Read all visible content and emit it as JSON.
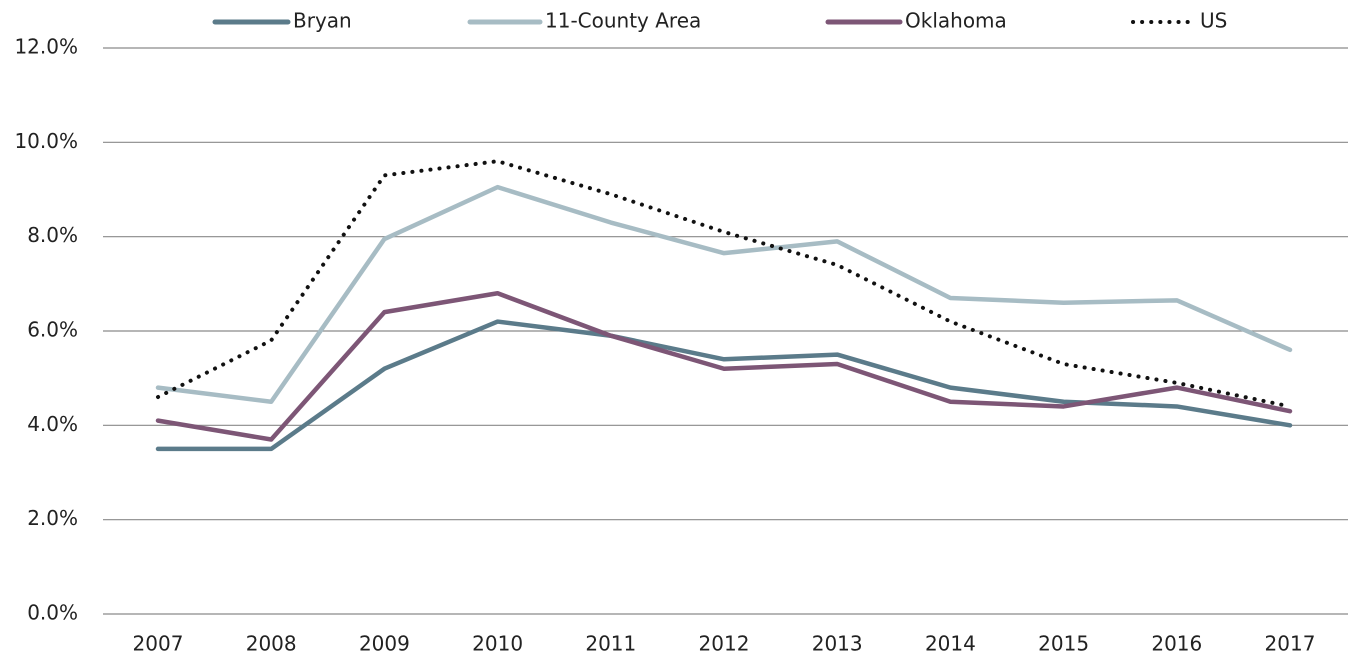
{
  "chart_data": {
    "type": "line",
    "x": [
      "2007",
      "2008",
      "2009",
      "2010",
      "2011",
      "2012",
      "2013",
      "2014",
      "2015",
      "2016",
      "2017"
    ],
    "series": [
      {
        "name": "Bryan",
        "color": "#5b7b8a",
        "values": [
          3.5,
          3.5,
          5.2,
          6.2,
          5.9,
          5.4,
          5.5,
          4.8,
          4.5,
          4.4,
          4.0
        ]
      },
      {
        "name": "11-County Area",
        "color": "#a7bcc4",
        "values": [
          4.8,
          4.5,
          7.95,
          9.05,
          8.3,
          7.65,
          7.9,
          6.7,
          6.6,
          6.65,
          5.6
        ]
      },
      {
        "name": "Oklahoma",
        "color": "#7d5676",
        "values": [
          4.1,
          3.7,
          6.4,
          6.8,
          5.9,
          5.2,
          5.3,
          4.5,
          4.4,
          4.8,
          4.3
        ]
      },
      {
        "name": "US",
        "color": "#111111",
        "dash": "dotted",
        "values": [
          4.6,
          5.8,
          9.3,
          9.6,
          8.9,
          8.1,
          7.4,
          6.2,
          5.3,
          4.9,
          4.4
        ]
      }
    ],
    "ylim": [
      0,
      12
    ],
    "yticks": [
      {
        "value": 0,
        "label": "0.0%"
      },
      {
        "value": 2,
        "label": "2.0%"
      },
      {
        "value": 4,
        "label": "4.0%"
      },
      {
        "value": 6,
        "label": "6.0%"
      },
      {
        "value": 8,
        "label": "8.0%"
      },
      {
        "value": 10,
        "label": "10.0%"
      },
      {
        "value": 12,
        "label": "12.0%"
      }
    ],
    "grid": true,
    "legend": "top"
  }
}
